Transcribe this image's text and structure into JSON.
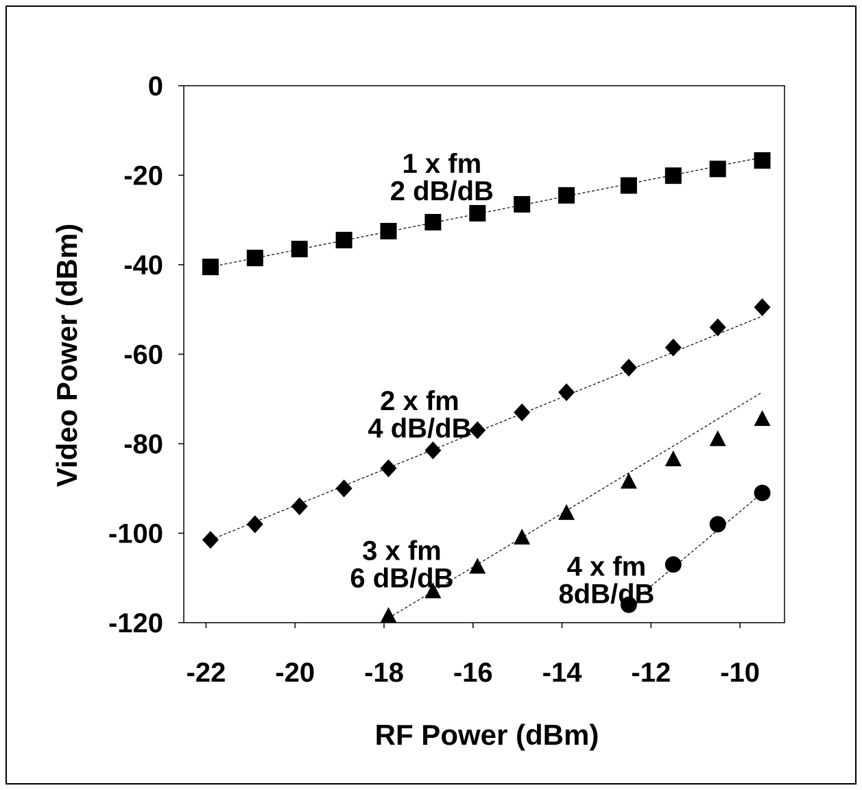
{
  "chart_data": {
    "type": "scatter",
    "title": "",
    "xlabel": "RF Power (dBm)",
    "ylabel": "Video Power (dBm)",
    "xlim": [
      -22.5,
      -9
    ],
    "ylim": [
      -120,
      0
    ],
    "x_ticks": [
      -22,
      -20,
      -18,
      -16,
      -14,
      -12,
      -10
    ],
    "x_tick_labels": [
      "-22",
      "-20",
      "-18",
      "-16",
      "-14",
      "-12",
      "-10"
    ],
    "y_ticks": [
      0,
      -20,
      -40,
      -60,
      -80,
      -100,
      -120
    ],
    "y_tick_labels": [
      "0",
      "-20",
      "-40",
      "-60",
      "-80",
      "-100",
      "-120"
    ],
    "grid": false,
    "series": [
      {
        "marker": "square",
        "x": [
          -21.9,
          -20.9,
          -19.9,
          -18.9,
          -17.9,
          -16.9,
          -15.9,
          -14.9,
          -13.9,
          -12.5,
          -11.5,
          -10.5,
          -9.5
        ],
        "y": [
          -40.5,
          -38.5,
          -36.5,
          -34.5,
          -32.5,
          -30.5,
          -28.5,
          -26.5,
          -24.5,
          -22.3,
          -20.1,
          -18.6,
          -16.7
        ],
        "fit": {
          "x": [
            -21.9,
            -9.5
          ],
          "y": [
            -40.5,
            -16.0
          ]
        }
      },
      {
        "marker": "diamond",
        "x": [
          -21.9,
          -20.9,
          -19.9,
          -18.9,
          -17.9,
          -16.9,
          -15.9,
          -14.9,
          -13.9,
          -12.5,
          -11.5,
          -10.5,
          -9.5
        ],
        "y": [
          -101.5,
          -98.0,
          -94.0,
          -90.0,
          -85.5,
          -81.5,
          -77.0,
          -73.0,
          -68.5,
          -63.0,
          -58.5,
          -54.0,
          -49.5
        ],
        "fit": {
          "x": [
            -21.9,
            -9.5
          ],
          "y": [
            -101.5,
            -51.5
          ]
        }
      },
      {
        "marker": "triangle",
        "x": [
          -17.9,
          -16.9,
          -15.9,
          -14.9,
          -13.9,
          -12.5,
          -11.5,
          -10.5,
          -9.5
        ],
        "y": [
          -118.5,
          -113.0,
          -107.5,
          -101.0,
          -95.5,
          -88.5,
          -83.5,
          -79.0,
          -74.5
        ],
        "fit": {
          "x": [
            -17.9,
            -9.5
          ],
          "y": [
            -119.0,
            -68.5
          ]
        }
      },
      {
        "marker": "circle",
        "x": [
          -12.5,
          -11.5,
          -10.5,
          -9.5
        ],
        "y": [
          -116.0,
          -107.0,
          -98.0,
          -91.0
        ],
        "fit": {
          "x": [
            -12.5,
            -9.5
          ],
          "y": [
            -116.0,
            -91.0
          ]
        }
      }
    ],
    "annotations": [
      {
        "lines": [
          "1 x fm",
          "2 dB/dB"
        ],
        "x": -16.7,
        "y": -19.5
      },
      {
        "lines": [
          "2 x fm",
          "4 dB/dB"
        ],
        "x": -17.2,
        "y": -72.5
      },
      {
        "lines": [
          "3 x fm",
          "6 dB/dB"
        ],
        "x": -17.6,
        "y": -106
      },
      {
        "lines": [
          "4 x fm",
          "8dB/dB"
        ],
        "x": -13.0,
        "y": -109.5
      }
    ]
  }
}
